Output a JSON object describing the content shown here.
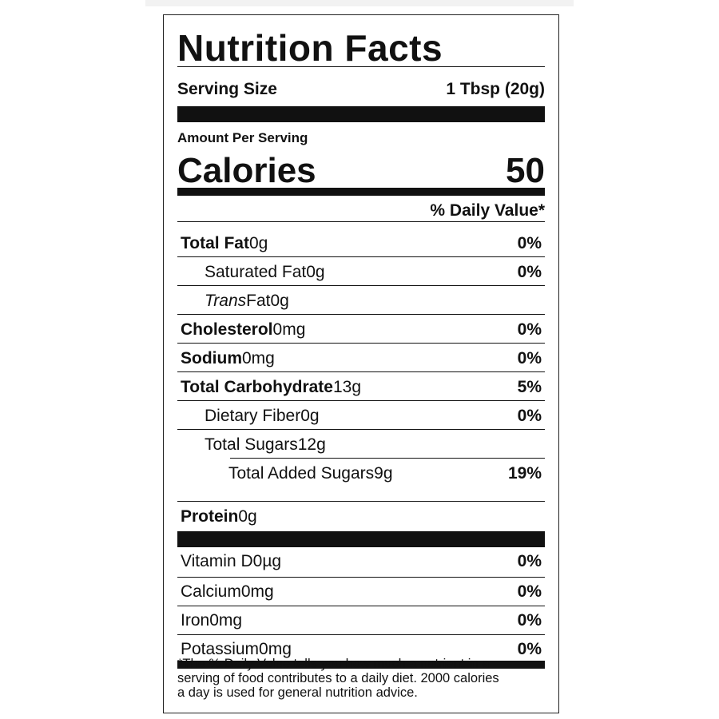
{
  "label": {
    "title": "Nutrition Facts",
    "serving_size_label": "Serving Size",
    "serving_size_value": "1 Tbsp (20g)",
    "amount_per_serving": "Amount Per Serving",
    "calories_label": "Calories",
    "calories_value": "50",
    "daily_value_header": "% Daily Value*",
    "nutrients": [
      {
        "name": "Total Fat",
        "amount": "0g",
        "dv": "0%"
      },
      {
        "name": "Saturated Fat",
        "amount": "0g",
        "dv": "0%"
      },
      {
        "name": "Trans",
        "name_suffix": "Fat",
        "amount": "0g",
        "dv": ""
      },
      {
        "name": "Cholesterol",
        "amount": "0mg",
        "dv": "0%"
      },
      {
        "name": "Sodium",
        "amount": "0mg",
        "dv": "0%"
      },
      {
        "name": "Total Carbohydrate",
        "amount": "13g",
        "dv": "5%"
      },
      {
        "name": "Dietary Fiber",
        "amount": "0g",
        "dv": "0%"
      },
      {
        "name": "Total Sugars",
        "amount": "12g",
        "dv": ""
      },
      {
        "name": "Total Added Sugars",
        "amount": "9g",
        "dv": "19%"
      },
      {
        "name": "Protein",
        "amount": "0g",
        "dv": ""
      }
    ],
    "vitamins": [
      {
        "name": "Vitamin D",
        "amount": "0µg",
        "dv": "0%"
      },
      {
        "name": "Calcium",
        "amount": "0mg",
        "dv": "0%"
      },
      {
        "name": "Iron",
        "amount": "0mg",
        "dv": "0%"
      },
      {
        "name": "Potassium",
        "amount": "0mg",
        "dv": "0%"
      }
    ],
    "footnote_lines": [
      "*The % Daily Value tells you how much a nutrient in a",
      "serving of food contributes to a daily diet. 2000 calories",
      "a day is used for general nutrition advice."
    ]
  }
}
